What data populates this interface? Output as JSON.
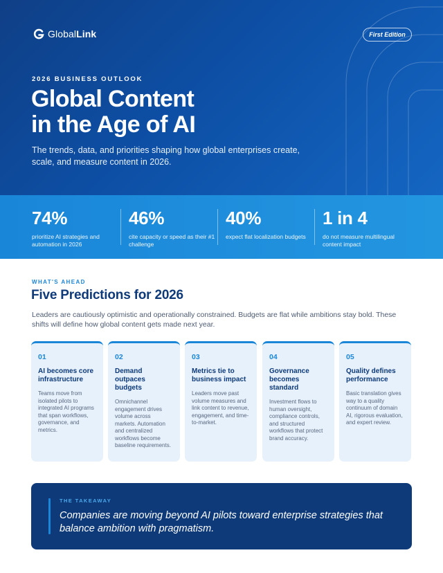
{
  "brand": {
    "logo_regular": "Global",
    "logo_bold": "Link",
    "edition_badge": "First Edition"
  },
  "hero": {
    "eyebrow": "2026 BUSINESS OUTLOOK",
    "title_line1": "Global Content",
    "title_line2": "in the Age of AI",
    "subtitle": "The trends, data, and priorities shaping how global enterprises create, scale, and measure content in 2026."
  },
  "stats": [
    {
      "value": "74%",
      "description": "prioritize AI strategies and automation in 2026"
    },
    {
      "value": "46%",
      "description": "cite capacity or speed as their #1 challenge"
    },
    {
      "value": "40%",
      "description": "expect flat localization budgets"
    },
    {
      "value": "1 in 4",
      "description": "do not measure multilingual content impact"
    }
  ],
  "predictions": {
    "kicker": "WHAT'S AHEAD",
    "title": "Five Predictions for 2026",
    "intro": "Leaders are cautiously optimistic and operationally constrained. Budgets are flat while ambitions stay bold. These shifts will define how global content gets made next year.",
    "cards": [
      {
        "number": "01",
        "title": "AI becomes core infrastructure",
        "body": "Teams move from isolated pilots to integrated AI programs that span workflows, governance, and metrics."
      },
      {
        "number": "02",
        "title": "Demand outpaces budgets",
        "body": "Omnichannel engagement drives volume across markets. Automation and centralized workflows become baseline requirements."
      },
      {
        "number": "03",
        "title": "Metrics tie to business impact",
        "body": "Leaders move past volume measures and link content to revenue, engagement, and time-to-market."
      },
      {
        "number": "04",
        "title": "Governance becomes standard",
        "body": "Investment flows to human oversight, compliance controls, and structured workflows that protect brand accuracy."
      },
      {
        "number": "05",
        "title": "Quality defines performance",
        "body": "Basic translation gives way to a quality continuum of domain AI, rigorous evaluation, and expert review."
      }
    ]
  },
  "takeaway": {
    "kicker": "THE TAKEAWAY",
    "quote": "Companies are moving beyond AI pilots toward enterprise strategies that balance ambition with pragmatism."
  },
  "colors": {
    "navy": "#0e3a7a",
    "accent_blue": "#1a86d8",
    "card_bg": "#e6f1fb"
  },
  "icons": {
    "logo_mark": "globallink-g-icon"
  }
}
